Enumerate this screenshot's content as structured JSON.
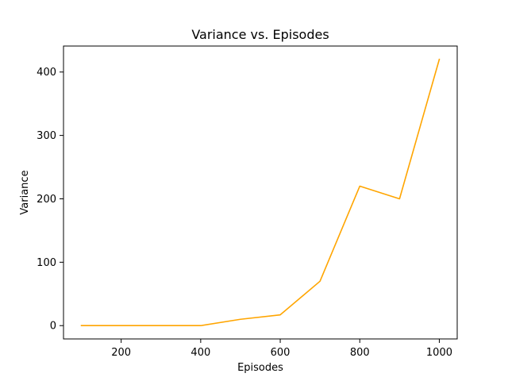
{
  "chart_data": {
    "type": "line",
    "title": "Variance vs. Episodes",
    "xlabel": "Episodes",
    "ylabel": "Variance",
    "xlim": [
      55,
      1045
    ],
    "ylim": [
      -21,
      441
    ],
    "xticks": [
      200,
      400,
      600,
      800,
      1000
    ],
    "yticks": [
      0,
      100,
      200,
      300,
      400
    ],
    "x": [
      100,
      200,
      300,
      400,
      500,
      600,
      700,
      800,
      900,
      1000
    ],
    "series": [
      {
        "values": [
          0,
          0,
          0,
          0,
          10,
          17,
          70,
          220,
          200,
          420
        ],
        "color": "#ffa500"
      }
    ],
    "grid": false,
    "legend": false
  }
}
